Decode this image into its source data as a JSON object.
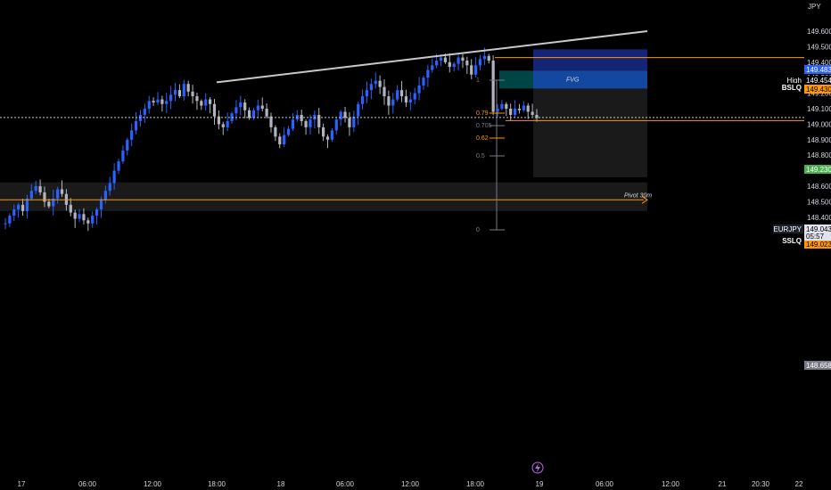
{
  "app": {
    "currency": "JPY",
    "symbol": "EURJPY",
    "current_price": "149.043",
    "countdown": "05:57"
  },
  "colors": {
    "bull": "#2962ff",
    "bear": "#b2b5be",
    "accent_orange": "#ff9800",
    "green_tag": "#4caf50",
    "blue_tag": "#2962ff",
    "gray_tag": "#787b86",
    "zone_blue": "#1a2a8a",
    "zone_teal": "#004d4d",
    "zone_gray": "#1e1e1e"
  },
  "chart_data": {
    "type": "candlestick",
    "y_axis": {
      "range": [
        148.36,
        149.67
      ],
      "ticks": [
        "149.600",
        "149.500",
        "149.400",
        "149.300",
        "149.200",
        "149.100",
        "149.000",
        "148.900",
        "148.800",
        "148.700",
        "148.600",
        "148.500",
        "148.400",
        "148.300"
      ]
    },
    "x_axis": {
      "ticks": [
        "17",
        "06:00",
        "12:00",
        "18:00",
        "18",
        "06:00",
        "12:00",
        "18:00",
        "19",
        "06:00",
        "12:00",
        "21",
        "20:30",
        "22"
      ]
    },
    "price_tags": [
      {
        "value": "149.483",
        "kind": "blue"
      },
      {
        "value": "149.454",
        "kind": "black",
        "label": "High"
      },
      {
        "value": "149.430",
        "kind": "orange",
        "label": "BSLQ"
      },
      {
        "value": "149.230",
        "kind": "green"
      },
      {
        "value": "149.043",
        "kind": "white",
        "label": "EURJPY"
      },
      {
        "value": "149.023",
        "kind": "orange",
        "label": "SSLQ"
      },
      {
        "value": "148.658",
        "kind": "gray"
      }
    ],
    "levels": [
      {
        "label": "BSLQ",
        "price": 149.43
      },
      {
        "label": "SSLQ",
        "price": 149.023
      },
      {
        "label": "Pivot 30m",
        "price": 148.512
      }
    ],
    "zones": [
      {
        "label": "",
        "top": 149.483,
        "bottom": 149.345
      },
      {
        "label": "FVG",
        "top": 149.345,
        "bottom": 149.23
      },
      {
        "label": "",
        "top": 149.23,
        "bottom": 148.658
      },
      {
        "label": "",
        "top": 148.625,
        "bottom": 148.44
      }
    ],
    "fib_levels": [
      "1",
      "0.79",
      "0.705",
      "0.62",
      "0.5",
      "0"
    ],
    "trendline": {
      "from": [
        "17:30 (day 17)",
        149.27
      ],
      "to": [
        "20:30 (day 19)",
        149.6
      ]
    },
    "candle_seed": [
      148.36,
      148.41,
      148.45,
      148.48,
      148.44,
      148.52,
      148.57,
      148.6,
      148.56,
      148.5,
      148.47,
      148.52,
      148.58,
      148.55,
      148.48,
      148.43,
      148.39,
      148.42,
      148.38,
      148.36,
      148.41,
      148.45,
      148.51,
      148.57,
      148.62,
      148.7,
      148.76,
      148.83,
      148.9,
      148.96,
      149.02,
      149.06,
      149.1,
      149.15,
      149.14,
      149.16,
      149.13,
      149.15,
      149.19,
      149.22,
      149.18,
      149.26,
      149.21,
      149.18,
      149.15,
      149.12,
      149.16,
      149.13,
      149.05,
      149.0,
      148.98,
      149.02,
      149.07,
      149.11,
      149.14,
      149.09,
      149.04,
      149.09,
      149.12,
      149.1,
      149.05,
      148.98,
      148.92,
      148.87,
      148.93,
      148.97,
      149.03,
      149.06,
      149.02,
      148.98,
      149.03,
      149.06,
      148.98,
      148.92,
      148.9,
      148.96,
      149.03,
      149.08,
      149.04,
      148.98,
      149.05,
      149.13,
      149.18,
      149.22,
      149.26,
      149.28,
      149.24,
      149.18,
      149.12,
      149.16,
      149.22,
      149.18,
      149.14,
      149.16,
      149.2,
      149.25,
      149.3,
      149.35,
      149.38,
      149.41,
      149.43,
      149.4,
      149.37,
      149.39,
      149.43,
      149.41,
      149.38,
      149.32,
      149.38,
      149.42,
      149.44,
      149.41,
      149.08,
      149.1,
      149.13,
      149.1,
      149.06,
      149.1,
      149.09,
      149.12,
      149.08,
      149.06,
      149.04
    ]
  }
}
